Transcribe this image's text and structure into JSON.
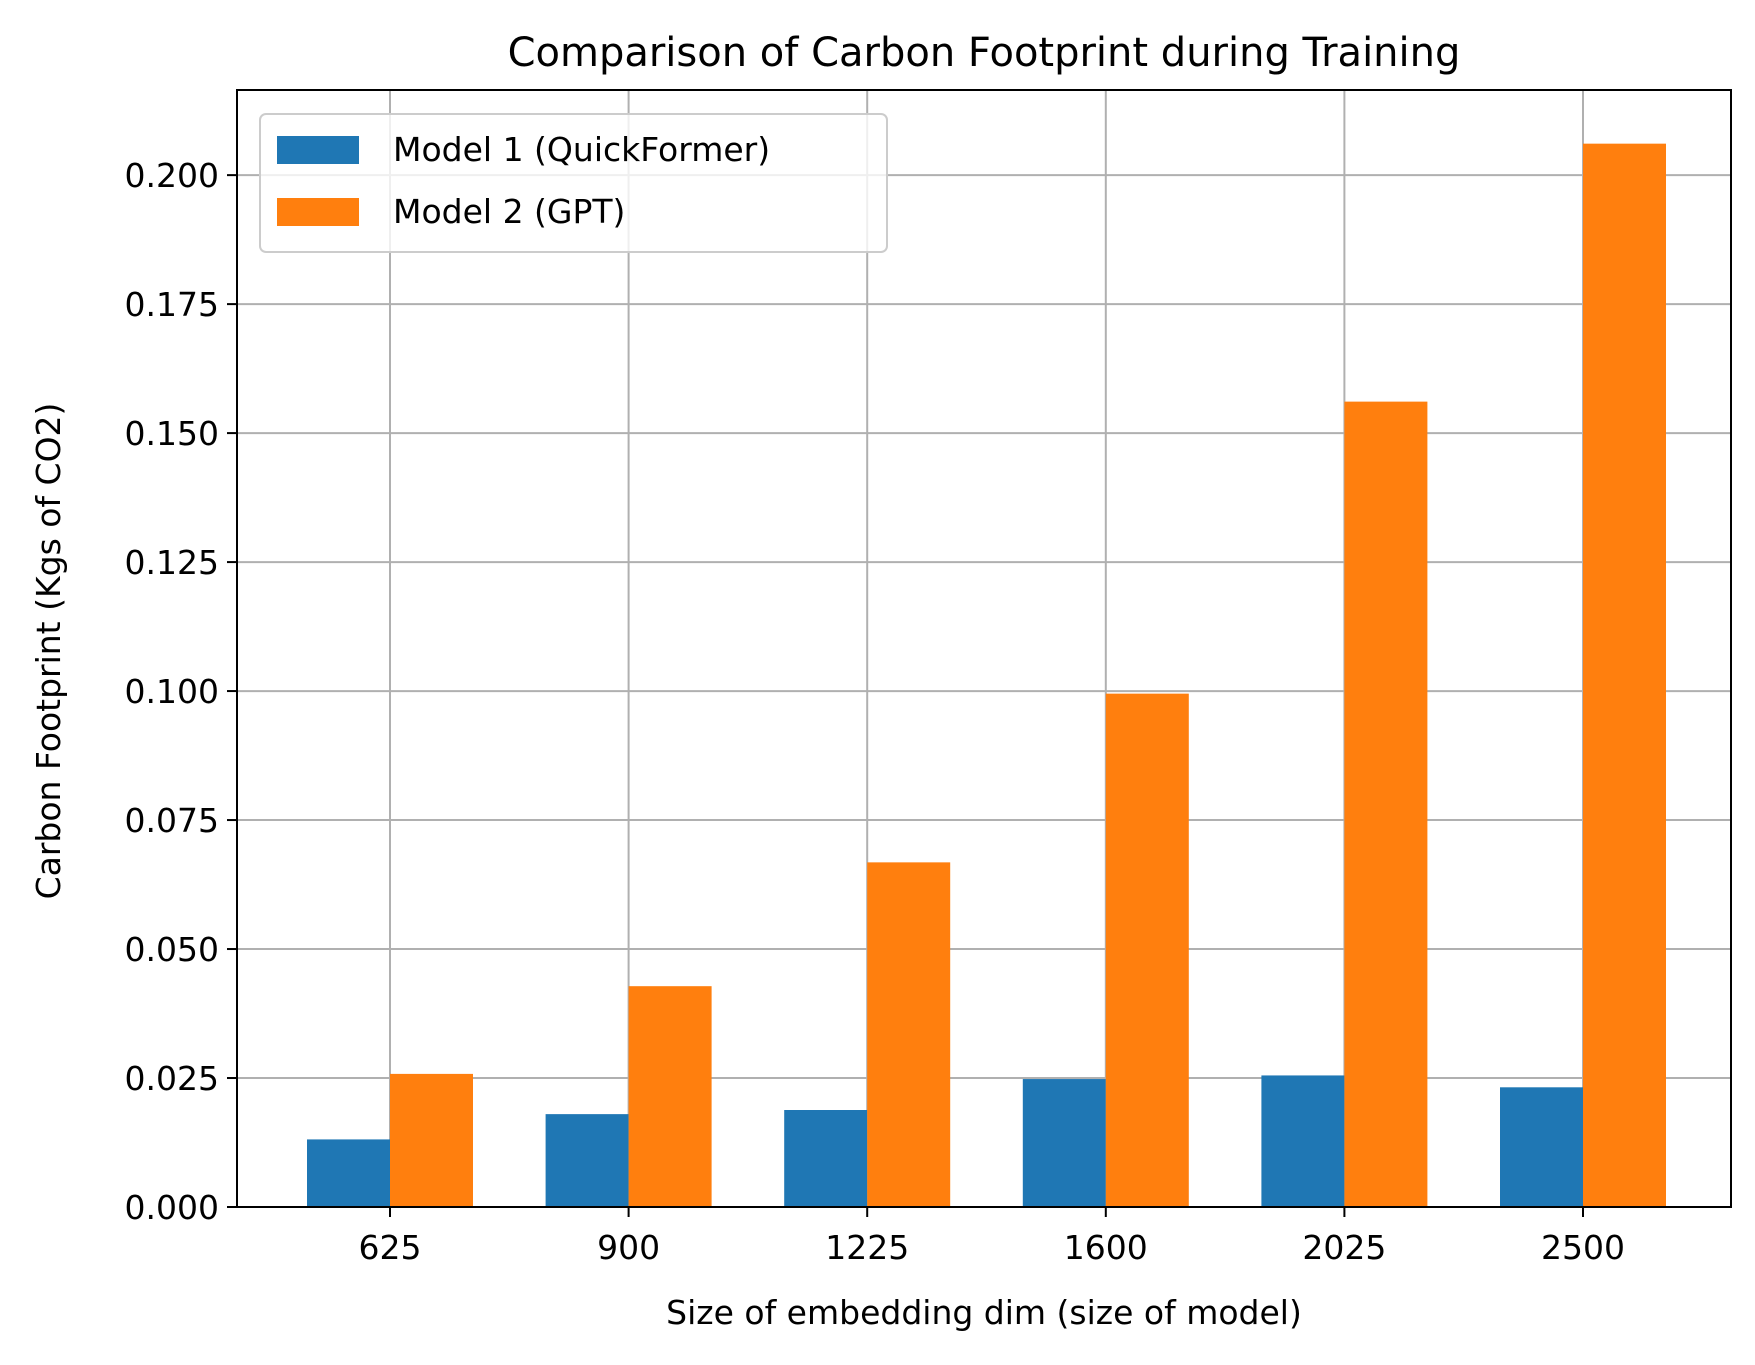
{
  "chart_data": {
    "type": "bar",
    "title": "Comparison of Carbon Footprint during Training",
    "xlabel": "Size of embedding dim (size of model)",
    "ylabel": "Carbon Footprint (Kgs of CO2)",
    "categories": [
      "625",
      "900",
      "1225",
      "1600",
      "2025",
      "2500"
    ],
    "series": [
      {
        "name": "Model 1 (QuickFormer)",
        "color": "#1f77b4",
        "values": [
          0.0131,
          0.018,
          0.0188,
          0.0248,
          0.0255,
          0.0232
        ]
      },
      {
        "name": "Model 2 (GPT)",
        "color": "#ff7f0e",
        "values": [
          0.0258,
          0.0428,
          0.0668,
          0.0995,
          0.1561,
          0.2061
        ]
      }
    ],
    "ylim": [
      0,
      0.2165
    ],
    "yticks": [
      "0.000",
      "0.025",
      "0.050",
      "0.075",
      "0.100",
      "0.125",
      "0.150",
      "0.175",
      "0.200"
    ],
    "grid": true,
    "legend_position": "top-left"
  }
}
